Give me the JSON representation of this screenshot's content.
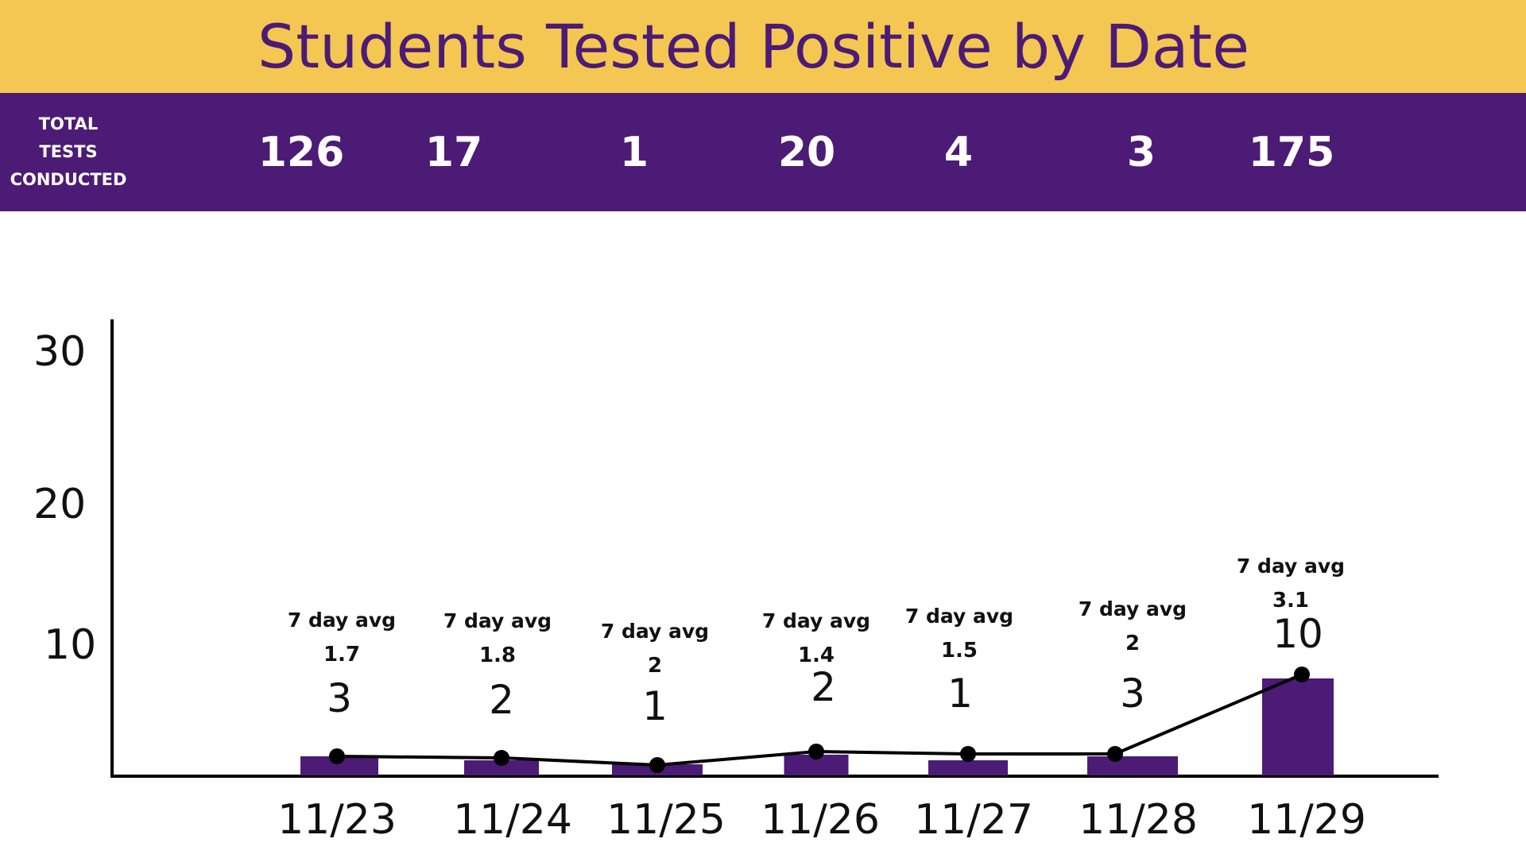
{
  "colors": {
    "title_background": "#f3c752",
    "title_text": "#4c1b75",
    "tests_background": "#4c1b75",
    "tests_text": "#ffffff",
    "bar": "#4c1b75",
    "line": "#000000",
    "axis": "#000000"
  },
  "title": "Students Tested Positive by Date",
  "tests": {
    "label_lines": [
      "TOTAL",
      "TESTS",
      "CONDUCTED"
    ],
    "values": [
      "126",
      "17",
      "1",
      "20",
      "4",
      "3",
      "175"
    ]
  },
  "avg_label": "7 day avg",
  "chart_data": {
    "type": "bar",
    "categories": [
      "11/23",
      "11/24",
      "11/25",
      "11/26",
      "11/27",
      "11/28",
      "11/29"
    ],
    "series": [
      {
        "values": [
          3,
          2,
          1,
          2,
          1,
          3,
          10
        ],
        "type": "bar"
      },
      {
        "values": [
          1.7,
          1.8,
          2,
          1.4,
          1.5,
          2,
          3.1
        ],
        "type": "line"
      }
    ],
    "yticks": [
      "10",
      "20",
      "30"
    ],
    "grid": false,
    "legend": "none"
  }
}
